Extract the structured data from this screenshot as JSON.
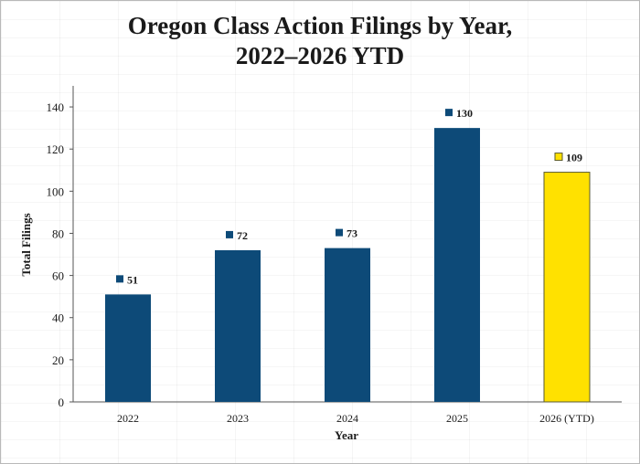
{
  "chart_data": {
    "type": "bar",
    "title_line1": "Oregon Class Action Filings by Year,",
    "title_line2": "2022–2026 YTD",
    "xlabel": "Year",
    "ylabel": "Total Filings",
    "categories": [
      "2022",
      "2023",
      "2024",
      "2025",
      "2026 (YTD)"
    ],
    "values": [
      51,
      72,
      73,
      130,
      109
    ],
    "data_labels": [
      "51",
      "72",
      "73",
      "130",
      "109"
    ],
    "ylim": [
      0,
      150
    ],
    "yticks": [
      0,
      20,
      40,
      60,
      80,
      100,
      120,
      140
    ],
    "grid": false,
    "legend": "none",
    "colors": {
      "bar": "#0d4a78",
      "highlight_bar": "#ffe100",
      "highlight_outline": "#5a5a30",
      "axis": "#555555",
      "text": "#1a1a1a"
    },
    "highlight_index": 4
  }
}
